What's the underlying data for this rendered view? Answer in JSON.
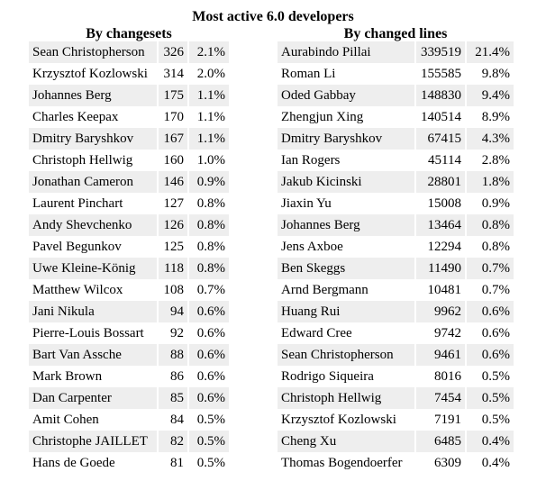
{
  "title": "Most active 6.0 developers",
  "changesets": {
    "heading": "By changesets",
    "rows": [
      {
        "name": "Sean Christopherson",
        "count": "326",
        "pct": "2.1%"
      },
      {
        "name": "Krzysztof Kozlowski",
        "count": "314",
        "pct": "2.0%"
      },
      {
        "name": "Johannes Berg",
        "count": "175",
        "pct": "1.1%"
      },
      {
        "name": "Charles Keepax",
        "count": "170",
        "pct": "1.1%"
      },
      {
        "name": "Dmitry Baryshkov",
        "count": "167",
        "pct": "1.1%"
      },
      {
        "name": "Christoph Hellwig",
        "count": "160",
        "pct": "1.0%"
      },
      {
        "name": "Jonathan Cameron",
        "count": "146",
        "pct": "0.9%"
      },
      {
        "name": "Laurent Pinchart",
        "count": "127",
        "pct": "0.8%"
      },
      {
        "name": "Andy Shevchenko",
        "count": "126",
        "pct": "0.8%"
      },
      {
        "name": "Pavel Begunkov",
        "count": "125",
        "pct": "0.8%"
      },
      {
        "name": "Uwe Kleine-König",
        "count": "118",
        "pct": "0.8%"
      },
      {
        "name": "Matthew Wilcox",
        "count": "108",
        "pct": "0.7%"
      },
      {
        "name": "Jani Nikula",
        "count": "94",
        "pct": "0.6%"
      },
      {
        "name": "Pierre-Louis Bossart",
        "count": "92",
        "pct": "0.6%"
      },
      {
        "name": "Bart Van Assche",
        "count": "88",
        "pct": "0.6%"
      },
      {
        "name": "Mark Brown",
        "count": "86",
        "pct": "0.6%"
      },
      {
        "name": "Dan Carpenter",
        "count": "85",
        "pct": "0.6%"
      },
      {
        "name": "Amit Cohen",
        "count": "84",
        "pct": "0.5%"
      },
      {
        "name": "Christophe JAILLET",
        "count": "82",
        "pct": "0.5%"
      },
      {
        "name": "Hans de Goede",
        "count": "81",
        "pct": "0.5%"
      }
    ]
  },
  "lines": {
    "heading": "By changed lines",
    "rows": [
      {
        "name": "Aurabindo Pillai",
        "count": "339519",
        "pct": "21.4%"
      },
      {
        "name": "Roman Li",
        "count": "155585",
        "pct": "9.8%"
      },
      {
        "name": "Oded Gabbay",
        "count": "148830",
        "pct": "9.4%"
      },
      {
        "name": "Zhengjun Xing",
        "count": "140514",
        "pct": "8.9%"
      },
      {
        "name": "Dmitry Baryshkov",
        "count": "67415",
        "pct": "4.3%"
      },
      {
        "name": "Ian Rogers",
        "count": "45114",
        "pct": "2.8%"
      },
      {
        "name": "Jakub Kicinski",
        "count": "28801",
        "pct": "1.8%"
      },
      {
        "name": "Jiaxin Yu",
        "count": "15008",
        "pct": "0.9%"
      },
      {
        "name": "Johannes Berg",
        "count": "13464",
        "pct": "0.8%"
      },
      {
        "name": "Jens Axboe",
        "count": "12294",
        "pct": "0.8%"
      },
      {
        "name": "Ben Skeggs",
        "count": "11490",
        "pct": "0.7%"
      },
      {
        "name": "Arnd Bergmann",
        "count": "10481",
        "pct": "0.7%"
      },
      {
        "name": "Huang Rui",
        "count": "9962",
        "pct": "0.6%"
      },
      {
        "name": "Edward Cree",
        "count": "9742",
        "pct": "0.6%"
      },
      {
        "name": "Sean Christopherson",
        "count": "9461",
        "pct": "0.6%"
      },
      {
        "name": "Rodrigo Siqueira",
        "count": "8016",
        "pct": "0.5%"
      },
      {
        "name": "Christoph Hellwig",
        "count": "7454",
        "pct": "0.5%"
      },
      {
        "name": "Krzysztof Kozlowski",
        "count": "7191",
        "pct": "0.5%"
      },
      {
        "name": "Cheng Xu",
        "count": "6485",
        "pct": "0.4%"
      },
      {
        "name": "Thomas Bogendoerfer",
        "count": "6309",
        "pct": "0.4%"
      }
    ]
  },
  "colors": {
    "row_shade": "#eeeeee",
    "background": "#ffffff",
    "text": "#000000"
  }
}
